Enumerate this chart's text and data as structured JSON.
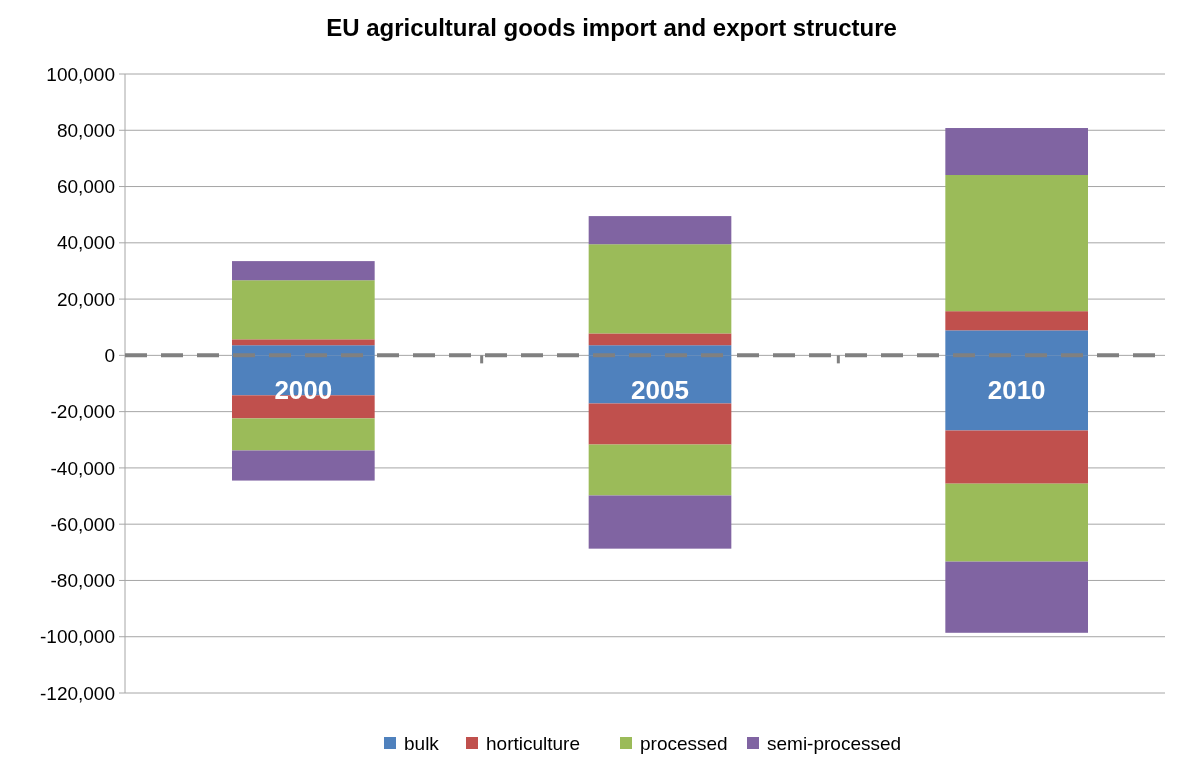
{
  "chart_data": {
    "type": "bar",
    "title": "EU agricultural goods import and export structure",
    "categories": [
      "2000",
      "2005",
      "2010"
    ],
    "stacked": true,
    "series": [
      {
        "name": "bulk",
        "color": "#4f81bd",
        "values": [
          3600,
          3600,
          8900
        ]
      },
      {
        "name": "horticulture",
        "color": "#c0504d",
        "values": [
          2100,
          4200,
          6800
        ]
      },
      {
        "name": "processed",
        "color": "#9bbb59",
        "values": [
          21000,
          31700,
          48400
        ]
      },
      {
        "name": "semi-processed",
        "color": "#8064a2",
        "values": [
          6800,
          10000,
          16700
        ]
      },
      {
        "color": "#4f81bd",
        "values": [
          -14200,
          -17100,
          -26700
        ]
      },
      {
        "color": "#c0504d",
        "values": [
          -8200,
          -14600,
          -18900
        ]
      },
      {
        "color": "#9bbb59",
        "values": [
          -11400,
          -18100,
          -27700
        ]
      },
      {
        "color": "#8064a2",
        "values": [
          -10700,
          -18900,
          -25300
        ]
      }
    ],
    "ylim": [
      -120000,
      100000
    ],
    "yticks": [
      {
        "value": -120000,
        "label": "-120,000"
      },
      {
        "value": -100000,
        "label": "-100,000"
      },
      {
        "value": -80000,
        "label": "-80,000"
      },
      {
        "value": -60000,
        "label": "-60,000"
      },
      {
        "value": -40000,
        "label": "-40,000"
      },
      {
        "value": -20000,
        "label": "-20,000"
      },
      0,
      {
        "value": 20000,
        "label": "20,000"
      },
      {
        "value": 40000,
        "label": "40,000"
      },
      {
        "value": 60000,
        "label": "60,000"
      },
      {
        "value": 80000,
        "label": "80,000"
      },
      {
        "value": 100000,
        "label": "100,000"
      }
    ],
    "ref_lines": [
      {
        "axis": "y",
        "value": 0,
        "color": "#808080",
        "line_style": "dashed"
      }
    ],
    "grid": "y",
    "legend": "bottom"
  }
}
